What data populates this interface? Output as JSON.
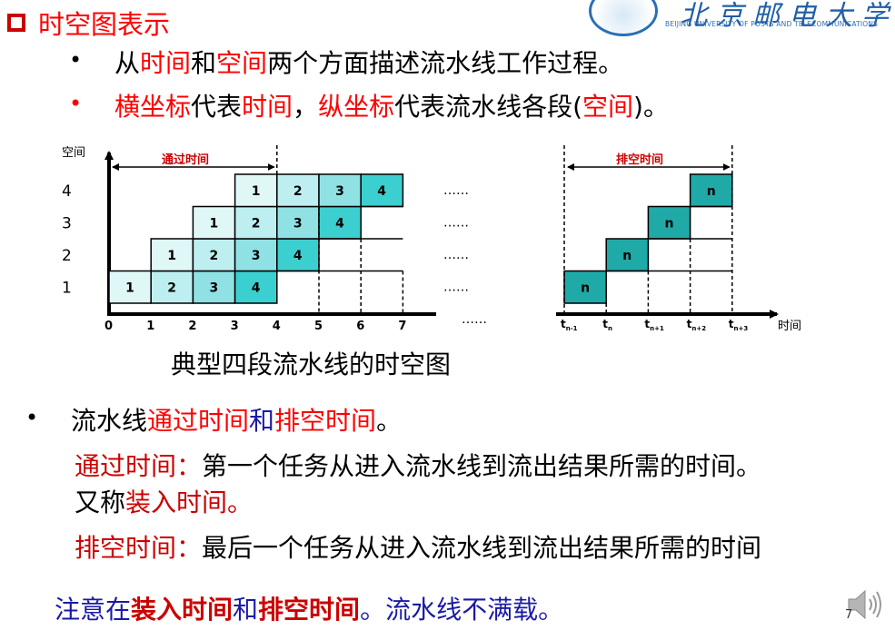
{
  "title": "时空图表示",
  "logo": {
    "cn": "北京邮电大学",
    "en": "BEIJING UNIVERSITY OF POSTS AND TELECOMMUNICATIONS"
  },
  "bullets_top": [
    {
      "symbol": "•",
      "parts": [
        "从",
        "时间",
        "和",
        "空间",
        "两个方面描述流水线工作过程。"
      ]
    },
    {
      "symbol": "•",
      "parts": [
        "横坐标",
        "代表",
        "时间",
        "，",
        "纵坐标",
        "代表流水线各段(",
        "空间",
        ")。"
      ]
    }
  ],
  "diagram": {
    "ylabel": "空间",
    "xlabel": "时间",
    "stages": [
      "1",
      "2",
      "3",
      "4"
    ],
    "x_ticks_left": [
      "0",
      "1",
      "2",
      "3",
      "4",
      "5",
      "6",
      "7"
    ],
    "x_ticks_right": [
      "t",
      "t",
      "t",
      "t",
      "t"
    ],
    "x_ticks_right_sub": [
      "n-1",
      "n",
      "n+1",
      "n+2",
      "n+3"
    ],
    "dots_row": "……",
    "dots_axis": "……",
    "fill_label": "通过时间",
    "drain_label": "排空时间",
    "task_label_n": "n",
    "tasks": [
      "1",
      "2",
      "3",
      "4"
    ],
    "colors": {
      "task1": "#dff7f7",
      "task2": "#bdeff0",
      "task3": "#8fe1e3",
      "task4": "#3ccfcf",
      "taskn": "#1fa9a7"
    }
  },
  "caption": "典型四段流水线的时空图",
  "bullet_bottom": {
    "symbol": "•",
    "parts": [
      "流水线",
      "通过时间",
      "和",
      "排空时间",
      "。"
    ]
  },
  "def_fill": {
    "label": "通过时间：",
    "text": "第一个任务从进入流水线到流出结果所需的时间。"
  },
  "def_fill_alt": {
    "prefix": "又称",
    "term": "装入时间",
    "suffix": "。"
  },
  "def_drain": {
    "label": "排空时间：",
    "text": "最后一个任务从进入流水线到流出结果所需的时间"
  },
  "note": {
    "parts": [
      "注意在",
      "装入时间",
      "和",
      "排空时间",
      "。流水线不满载。"
    ]
  },
  "page_number": "7"
}
